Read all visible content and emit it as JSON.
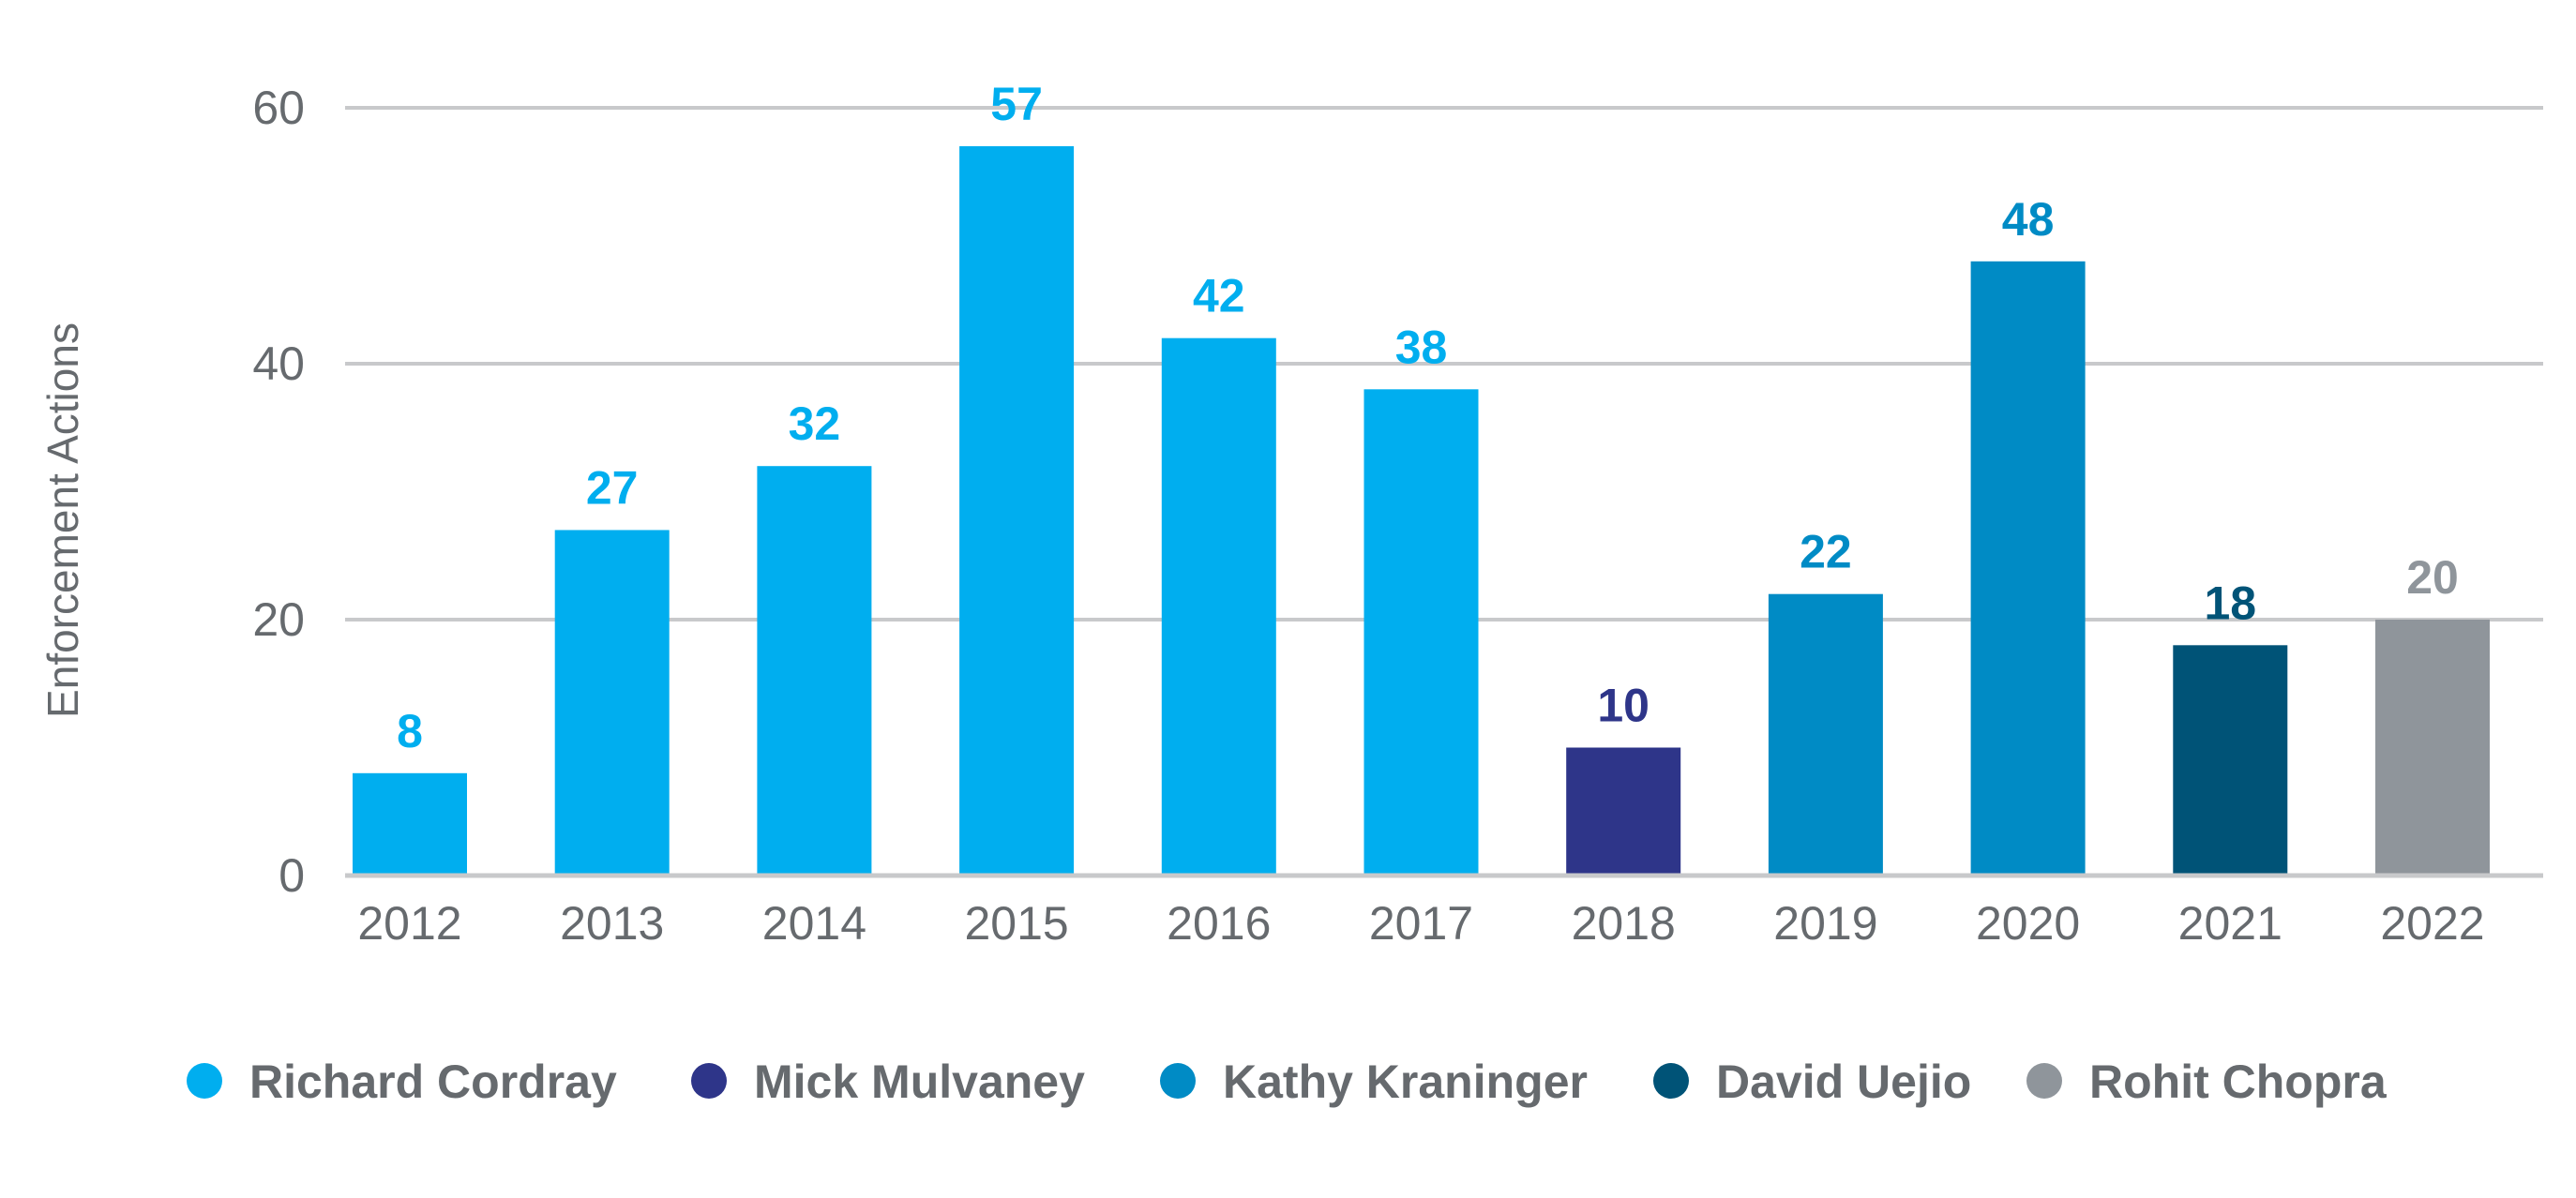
{
  "chart_data": {
    "type": "bar",
    "title": "",
    "xlabel": "",
    "ylabel": "Enforcement Actions",
    "ylim": [
      0,
      60
    ],
    "yticks": [
      0,
      20,
      40,
      60
    ],
    "grid": true,
    "legend_position": "bottom",
    "categories": [
      "2012",
      "2013",
      "2014",
      "2015",
      "2016",
      "2017",
      "2018",
      "2019",
      "2020",
      "2021",
      "2022"
    ],
    "values": [
      8,
      27,
      32,
      57,
      42,
      38,
      10,
      22,
      48,
      18,
      20
    ],
    "bar_directors": [
      "Richard Cordray",
      "Richard Cordray",
      "Richard Cordray",
      "Richard Cordray",
      "Richard Cordray",
      "Richard Cordray",
      "Mick Mulvaney",
      "Kathy Kraninger",
      "Kathy Kraninger",
      "David Uejio",
      "Rohit Chopra"
    ],
    "series": [
      {
        "name": "Richard Cordray",
        "color": "#00aeef"
      },
      {
        "name": "Mick Mulvaney",
        "color": "#2e3589"
      },
      {
        "name": "Kathy Kraninger",
        "color": "#008bc5"
      },
      {
        "name": "David Uejio",
        "color": "#005377"
      },
      {
        "name": "Rohit Chopra",
        "color": "#8f959b"
      }
    ],
    "colors": {
      "grid": "#c8c9cb",
      "axis": "#c8c9cb",
      "text": "#666a6e"
    }
  }
}
